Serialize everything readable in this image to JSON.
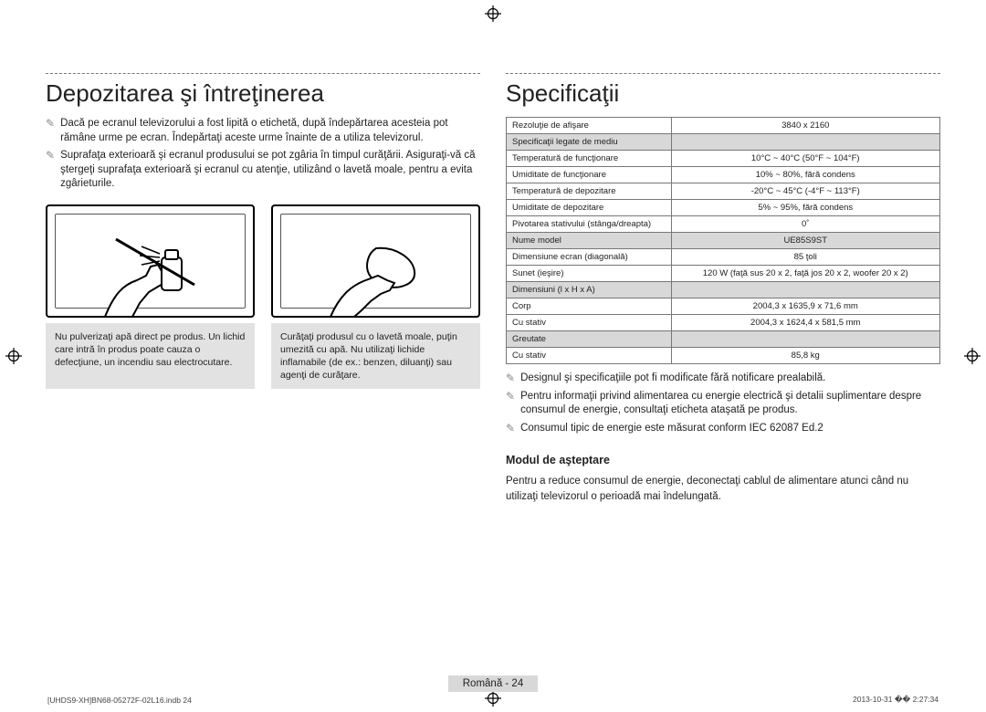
{
  "left": {
    "title": "Depozitarea şi întreţinerea",
    "bullets": [
      "Dacă pe ecranul televizorului a fost lipită o etichetă, după îndepărtarea acesteia pot rămâne urme pe ecran. Îndepărtaţi aceste urme înainte de a utiliza televizorul.",
      "Suprafaţa exterioară şi ecranul produsului se pot zgâria în timpul curăţării. Asiguraţi-vă că ştergeţi suprafaţa exterioară şi ecranul cu atenţie, utilizând o lavetă moale, pentru a evita zgârieturile."
    ],
    "cap1": "Nu pulverizaţi apă direct pe produs. Un lichid care intră în produs poate cauza o defecţiune, un incendiu sau electrocutare.",
    "cap2": "Curăţaţi produsul cu o lavetă moale, puţin umezită cu apă. Nu utilizaţi lichide inflamabile (de ex.: benzen, diluanţi) sau agenţi de curăţare."
  },
  "right": {
    "title": "Specificaţii",
    "rows": [
      {
        "lab": "Rezoluţie de afişare",
        "val": "3840 x 2160",
        "shade": false
      },
      {
        "lab": "Specificaţii legate de mediu",
        "val": "",
        "shade": true
      },
      {
        "lab": "Temperatură de funcţionare",
        "val": "10°C ~ 40°C (50°F ~ 104°F)",
        "shade": false
      },
      {
        "lab": "Umiditate de funcţionare",
        "val": "10% ~ 80%, fără condens",
        "shade": false
      },
      {
        "lab": "Temperatură de depozitare",
        "val": "-20°C ~ 45°C (-4°F ~ 113°F)",
        "shade": false
      },
      {
        "lab": "Umiditate de depozitare",
        "val": "5% ~ 95%, fără condens",
        "shade": false
      },
      {
        "lab": "Pivotarea stativului (stânga/dreapta)",
        "val": "0˚",
        "shade": false
      },
      {
        "lab": "Nume model",
        "val": "UE85S9ST",
        "shade": true
      },
      {
        "lab": "Dimensiune ecran (diagonală)",
        "val": "85 ţoli",
        "shade": false
      },
      {
        "lab": "Sunet (ieşire)",
        "val": "120 W (faţă sus 20 x 2, faţă jos 20 x 2, woofer 20 x 2)",
        "shade": false
      },
      {
        "lab": "Dimensiuni (l x H x A)",
        "val": "",
        "shade": true
      },
      {
        "lab": "Corp",
        "val": "2004,3 x 1635,9 x 71,6 mm",
        "shade": false
      },
      {
        "lab": "Cu stativ",
        "val": "2004,3 x 1624,4 x 581,5 mm",
        "shade": false
      },
      {
        "lab": "Greutate",
        "val": "",
        "shade": true
      },
      {
        "lab": "Cu stativ",
        "val": "85,8 kg",
        "shade": false
      }
    ],
    "notes": [
      "Designul şi specificaţiile pot fi modificate fără notificare prealabilă.",
      "Pentru informaţii privind alimentarea cu energie electrică şi detalii suplimentare despre consumul de energie, consultaţi eticheta ataşată pe produs.",
      "Consumul tipic de energie este măsurat conform IEC 62087 Ed.2"
    ],
    "standby_head": "Modul de aşteptare",
    "standby_body": "Pentru a reduce consumul de energie, deconectaţi cablul de alimentare atunci când nu utilizaţi televizorul o perioadă mai îndelungată."
  },
  "footer_lang": "Română - 24",
  "foot_left": "[UHDS9-XH]BN68-05272F-02L16.indb   24",
  "foot_right": "2013-10-31   �� 2:27:34",
  "marker": "✎"
}
